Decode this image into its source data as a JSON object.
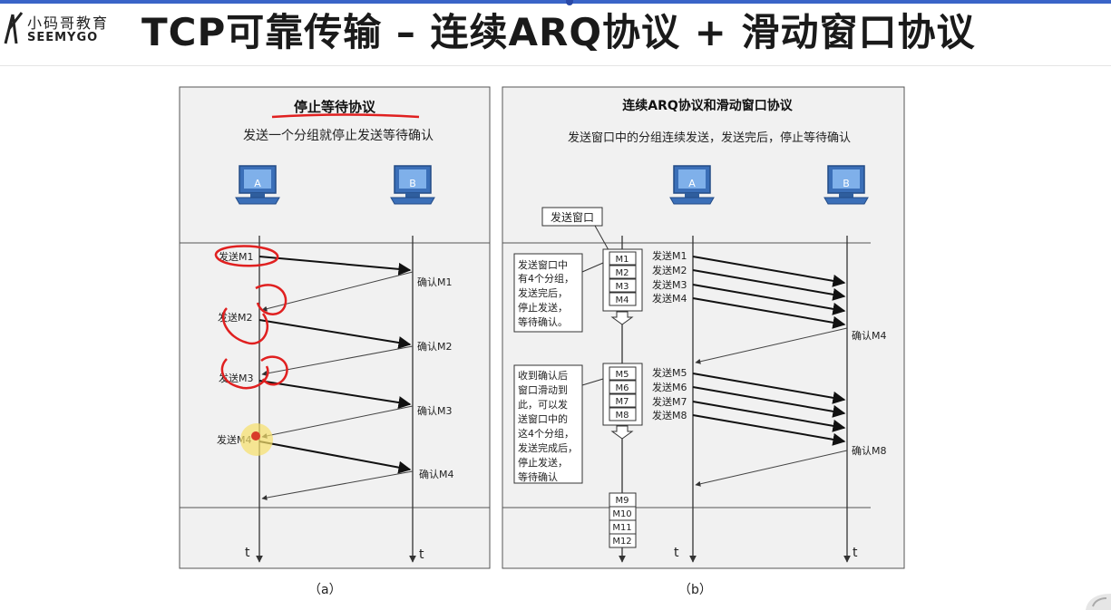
{
  "header": {
    "logo_cn": "小码哥教育",
    "logo_en": "SEEMYGO",
    "title": "TCP可靠传输 – 连续ARQ协议 + 滑动窗口协议"
  },
  "panel_a": {
    "title": "停止等待协议",
    "subtitle": "发送一个分组就停止发送等待确认",
    "host_a": "A",
    "host_b": "B",
    "send_labels": [
      "发送M1",
      "发送M2",
      "发送M3",
      "发送M4"
    ],
    "ack_labels": [
      "确认M1",
      "确认M2",
      "确认M3",
      "确认M4"
    ],
    "time_a": "t",
    "time_b": "t",
    "caption": "（a）"
  },
  "panel_b": {
    "title": "连续ARQ协议和滑动窗口协议",
    "subtitle": "发送窗口中的分组连续发送，发送完后，停止等待确认",
    "window_label": "发送窗口",
    "note1": [
      "发送窗口中",
      "有4个分组，",
      "发送完后，",
      "停止发送，",
      "等待确认。"
    ],
    "note2": [
      "收到确认后",
      "窗口滑动到",
      "此，可以发",
      "送窗口中的",
      "这4个分组，",
      "发送完成后，",
      "停止发送，",
      "等待确认"
    ],
    "group1": [
      "M1",
      "M2",
      "M3",
      "M4"
    ],
    "group2": [
      "M5",
      "M6",
      "M7",
      "M8"
    ],
    "group3": [
      "M9",
      "M10",
      "M11",
      "M12"
    ],
    "host_a": "A",
    "host_b": "B",
    "send_labels": [
      "发送M1",
      "发送M2",
      "发送M3",
      "发送M4",
      "发送M5",
      "发送M6",
      "发送M7",
      "发送M8"
    ],
    "ack_labels": [
      "确认M4",
      "确认M8"
    ],
    "time_a": "t",
    "time_b": "t",
    "caption": "（b）"
  },
  "colors": {
    "accent_bar": "#3a64c8",
    "annotation": "#e02020",
    "highlight": "#f7e06a",
    "panel_bg": "#f1f1f1",
    "computer": "#3b6fb8"
  }
}
